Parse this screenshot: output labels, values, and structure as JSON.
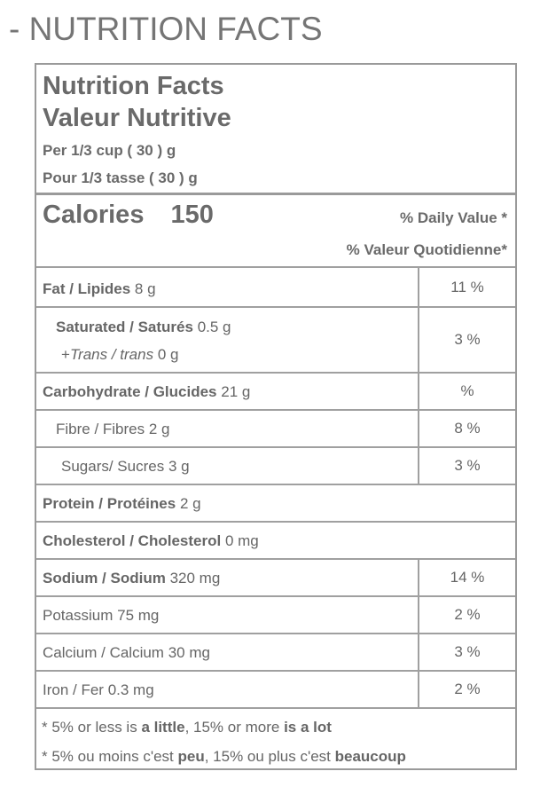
{
  "heading": "- NUTRITION FACTS",
  "label": {
    "title_en": "Nutrition Facts",
    "title_fr": "Valeur Nutritive",
    "serving_en": "Per 1/3 cup ( 30 ) g",
    "serving_fr": "Pour 1/3 tasse ( 30 ) g",
    "calories_label": "Calories",
    "calories_value": "150",
    "dv_en": "% Daily Value *",
    "dv_fr": "% Valeur Quotidienne*",
    "fat": {
      "name": "Fat / Lipides",
      "amount": "8 g",
      "dv": "11 %"
    },
    "saturated": {
      "name": "Saturated / Saturés",
      "amount": "0.5 g"
    },
    "trans": {
      "prefix": "+",
      "name": "Trans / trans",
      "amount": "0 g"
    },
    "sat_trans_dv": "3 %",
    "carbohydrate": {
      "name": "Carbohydrate / Glucides",
      "amount": "21 g",
      "dv": "%"
    },
    "fibre": {
      "name": "Fibre / Fibres",
      "amount": "2 g",
      "dv": "8 %"
    },
    "sugars": {
      "name": "Sugars/ Sucres",
      "amount": "3 g",
      "dv": "3 %"
    },
    "protein": {
      "name": "Protein / Protéines",
      "amount": "2 g"
    },
    "cholesterol": {
      "name": "Cholesterol / Cholesterol",
      "amount": "0 mg"
    },
    "sodium": {
      "name": "Sodium / Sodium",
      "amount": "320 mg",
      "dv": "14 %"
    },
    "potassium": {
      "name": "Potassium",
      "amount": "75 mg",
      "dv": "2 %"
    },
    "calcium": {
      "name": "Calcium / Calcium",
      "amount": "30 mg",
      "dv": "3 %"
    },
    "iron": {
      "name": "Iron / Fer",
      "amount": "0.3 mg",
      "dv": "2 %"
    },
    "footnote_en": {
      "p1": "* 5% or less is ",
      "b1": "a little",
      "p2": ", 15% or more ",
      "b2": "is a lot"
    },
    "footnote_fr": {
      "p1": "* 5% ou moins c'est ",
      "b1": "peu",
      "p2": ", 15% ou plus c'est ",
      "b2": "beaucoup"
    }
  }
}
